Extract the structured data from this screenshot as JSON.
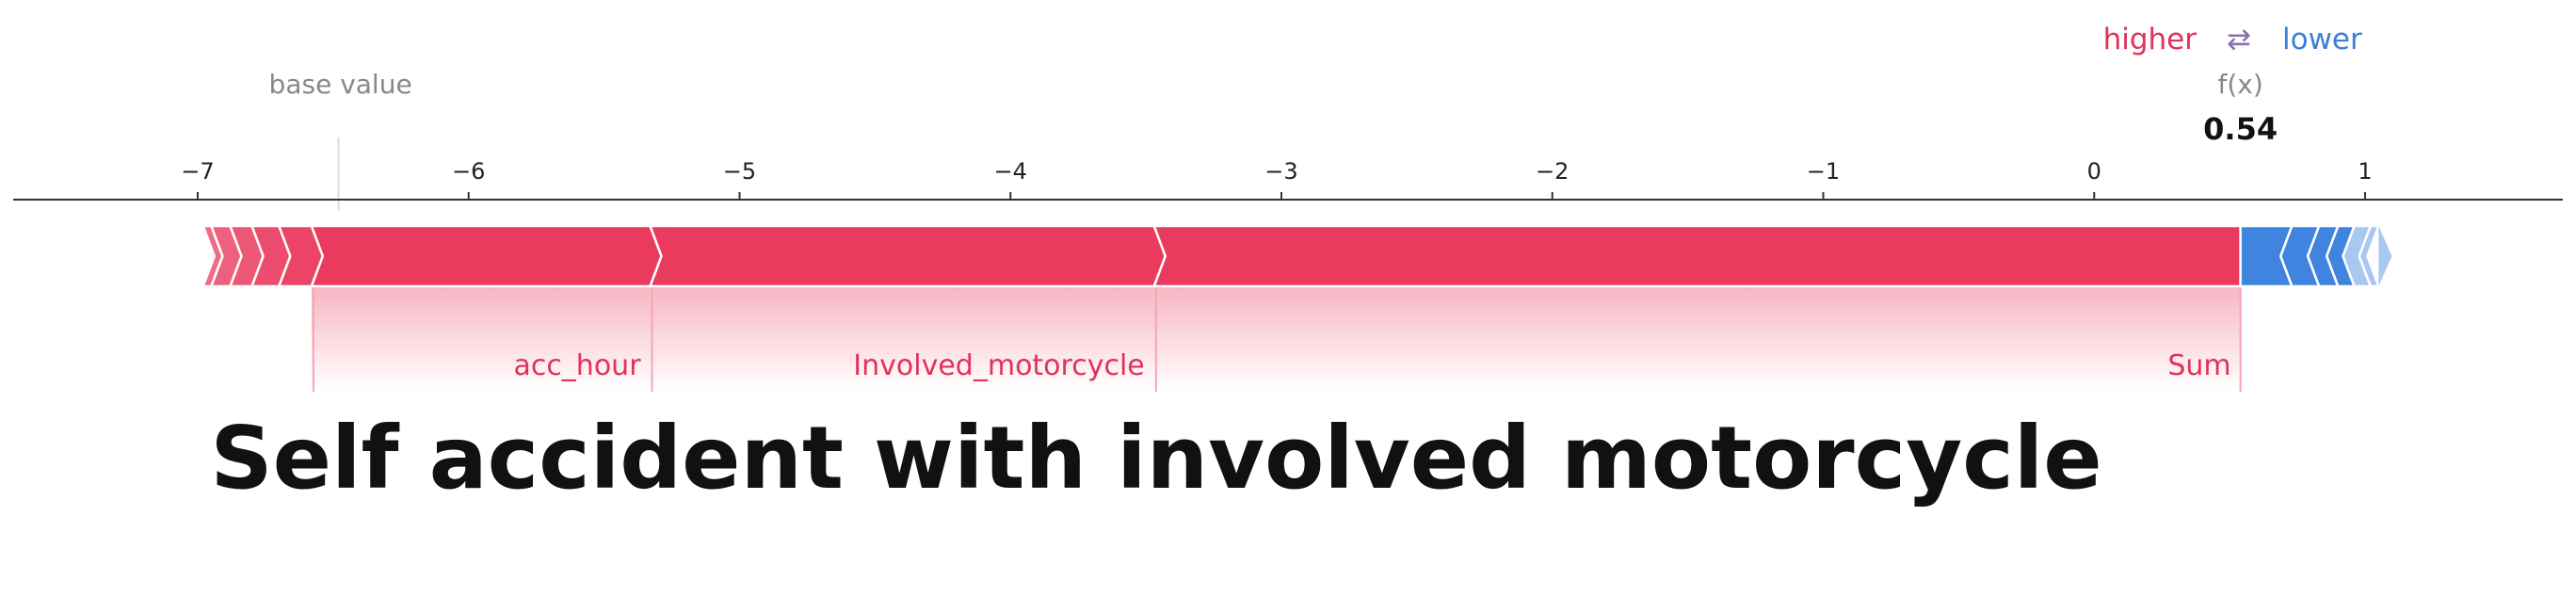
{
  "chart_data": {
    "type": "force",
    "legend": {
      "higher": "higher",
      "arrow": "⇄",
      "lower": "lower"
    },
    "base_value_label": "base value",
    "base_value": -6.48,
    "fx_label": "f(x)",
    "fx_value_label": "0.54",
    "fx_value": 0.54,
    "xlim": [
      -7.7,
      1.6
    ],
    "ticks": [
      {
        "value": -7,
        "label": "−7"
      },
      {
        "value": -6,
        "label": "−6"
      },
      {
        "value": -5,
        "label": "−5"
      },
      {
        "value": -4,
        "label": "−4"
      },
      {
        "value": -3,
        "label": "−3"
      },
      {
        "value": -2,
        "label": "−2"
      },
      {
        "value": -1,
        "label": "−1"
      },
      {
        "value": 0,
        "label": "0"
      },
      {
        "value": 1,
        "label": "1"
      }
    ],
    "positive_features": [
      {
        "name": "",
        "start": -6.98,
        "end": -6.95
      },
      {
        "name": "",
        "start": -6.95,
        "end": -6.88
      },
      {
        "name": "",
        "start": -6.88,
        "end": -6.8
      },
      {
        "name": "",
        "start": -6.8,
        "end": -6.7
      },
      {
        "name": "",
        "start": -6.7,
        "end": -6.58
      },
      {
        "name": "acc_hour",
        "start": -6.58,
        "end": -5.33
      },
      {
        "name": "Involved_motorcycle",
        "start": -5.33,
        "end": -3.47
      },
      {
        "name": "Sum",
        "start": -3.47,
        "end": 0.54
      }
    ],
    "negative_features": [
      {
        "name": "",
        "start": 0.54,
        "end": 0.73
      },
      {
        "name": "",
        "start": 0.73,
        "end": 0.83
      },
      {
        "name": "",
        "start": 0.83,
        "end": 0.9
      },
      {
        "name": "",
        "start": 0.9,
        "end": 0.96
      },
      {
        "name": "",
        "start": 0.96,
        "end": 1.02
      },
      {
        "name": "",
        "start": 1.02,
        "end": 1.05
      }
    ],
    "colors": {
      "positive": "#ea3a5e",
      "negative": "#3f84df",
      "negative_light": "#a8c8ef",
      "positive_label": "#e0325a",
      "negative_label": "#3a7fd9"
    }
  },
  "caption": "Self accident with involved motorcycle"
}
